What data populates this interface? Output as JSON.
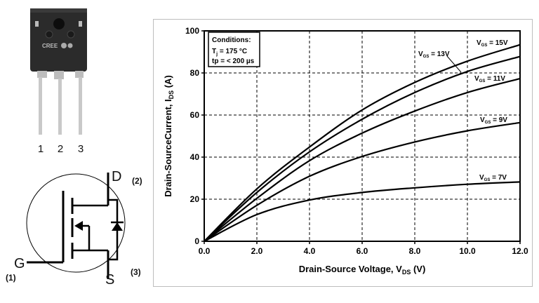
{
  "package": {
    "brand": "CREE",
    "pin_labels": [
      "1",
      "2",
      "3"
    ]
  },
  "schematic": {
    "gate": "G",
    "drain": "D",
    "source": "S",
    "gate_pin": "(1)",
    "drain_pin": "(2)",
    "source_pin": "(3)"
  },
  "chart_data": {
    "type": "line",
    "title": "",
    "xlabel": {
      "main": "Drain-Source Voltage, V",
      "sub": "DS",
      "unit": " (V)"
    },
    "ylabel": {
      "main": "Drain-SourceCurrent, I",
      "sub": "DS",
      "unit": " (A)"
    },
    "xlim": [
      0,
      12
    ],
    "ylim": [
      0,
      100
    ],
    "x_ticks": [
      "0.0",
      "2.0",
      "4.0",
      "6.0",
      "8.0",
      "10.0",
      "12.0"
    ],
    "y_ticks": [
      "0",
      "20",
      "40",
      "60",
      "80",
      "100"
    ],
    "grid": true,
    "conditions": {
      "heading": "Conditions:",
      "tj_main": "T",
      "tj_sub": "j",
      "tj_value": " = 175 °C",
      "tp": "tp = < 200 µs"
    },
    "x": [
      0,
      2,
      4,
      6,
      8,
      10,
      12
    ],
    "series": [
      {
        "name": "VGS = 15V",
        "label_main": "V",
        "label_sub": "GS",
        "label_value": " = 15V",
        "values": [
          0,
          24.9,
          44.8,
          62.4,
          75.5,
          85.6,
          93.4
        ]
      },
      {
        "name": "VGS = 13V",
        "label_main": "V",
        "label_sub": "GS",
        "label_value": " = 13V",
        "values": [
          0,
          23.2,
          42.5,
          58.0,
          70.7,
          80.7,
          87.8
        ]
      },
      {
        "name": "VGS = 11V",
        "label_main": "V",
        "label_sub": "GS",
        "label_value": " = 11V",
        "values": [
          0,
          20.4,
          38.3,
          51.4,
          61.9,
          70.7,
          77.3
        ]
      },
      {
        "name": "VGS = 9V",
        "label_main": "V",
        "label_sub": "GS",
        "label_value": " = 9V",
        "values": [
          0,
          17.1,
          30.9,
          40.3,
          47.2,
          52.5,
          56.4
        ]
      },
      {
        "name": "VGS = 7V",
        "label_main": "V",
        "label_sub": "GS",
        "label_value": " = 7V",
        "values": [
          0,
          12.7,
          19.6,
          23.2,
          25.4,
          27.1,
          28.2
        ]
      }
    ]
  }
}
